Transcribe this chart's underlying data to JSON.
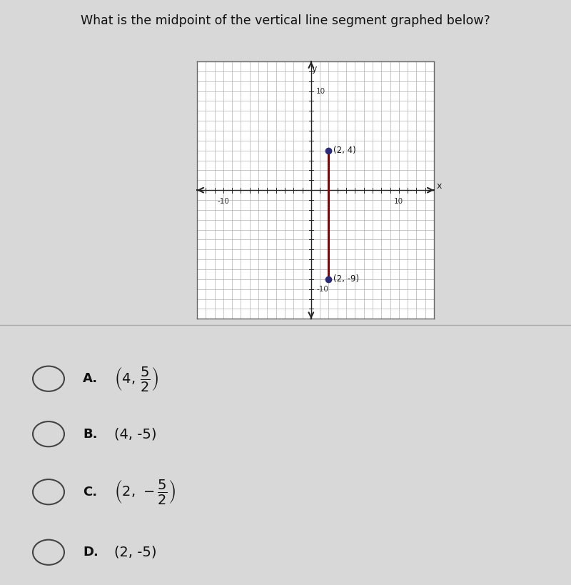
{
  "title": "What is the midpoint of the vertical line segment graphed below?",
  "title_fontsize": 12.5,
  "background_color": "#d8d8d8",
  "graph_background": "#ffffff",
  "grid_color": "#b0b0b0",
  "axis_color": "#222222",
  "line_color": "#8b0000",
  "point_color": "#2b2b7a",
  "point1": [
    2,
    4
  ],
  "point2": [
    2,
    -9
  ],
  "point1_label": "(2, 4)",
  "point2_label": "(2, -9)",
  "xlim": [
    -13,
    14
  ],
  "ylim": [
    -13,
    13
  ],
  "choices": [
    {
      "label": "A.",
      "text_plain": "(4, 5/2)",
      "has_fraction": true,
      "pre": "(4, ",
      "num": "5",
      "den": "2",
      "post": ")"
    },
    {
      "label": "B.",
      "text_plain": "(4, -5)",
      "has_fraction": false,
      "text": "(4, -5)"
    },
    {
      "label": "C.",
      "text_plain": "(2, -5/2)",
      "has_fraction": true,
      "pre": "(2, −",
      "num": "5",
      "den": "2",
      "post": ")"
    },
    {
      "label": "D.",
      "text_plain": "(2, -5)",
      "has_fraction": false,
      "text": "(2, -5)"
    }
  ]
}
